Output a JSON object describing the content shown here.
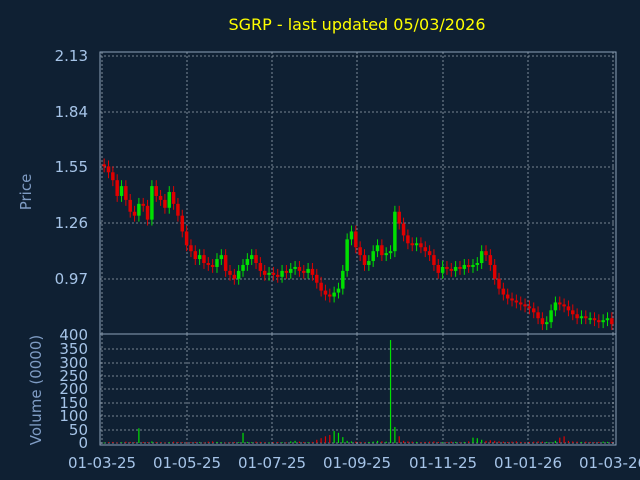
{
  "chart_data": {
    "title": "SGRP - last updated 05/03/2026",
    "colors": {
      "up": "#00e000",
      "down": "#e00000",
      "background": "#0f2033",
      "title": "#ffff00",
      "tick": "#a6c4e8"
    },
    "grid": true,
    "x_ticks": [
      "01-03-25",
      "01-05-25",
      "01-07-25",
      "01-09-25",
      "01-11-25",
      "01-01-26",
      "01-03-26"
    ],
    "price_panel": {
      "type": "candlestick",
      "ylabel": "Price",
      "ylim": [
        0.7,
        2.13
      ],
      "y_ticks": [
        "2.13",
        "1.84",
        "1.55",
        "1.26",
        "0.97"
      ],
      "bottom_label": "400",
      "closes": [
        1.55,
        1.52,
        1.48,
        1.4,
        1.45,
        1.38,
        1.32,
        1.3,
        1.36,
        1.35,
        1.28,
        1.45,
        1.4,
        1.38,
        1.34,
        1.42,
        1.36,
        1.3,
        1.22,
        1.15,
        1.12,
        1.08,
        1.1,
        1.06,
        1.05,
        1.04,
        1.08,
        1.1,
        1.02,
        1.0,
        0.98,
        1.02,
        1.05,
        1.08,
        1.1,
        1.06,
        1.02,
        1.0,
        1.01,
        1.0,
        0.99,
        1.02,
        1.01,
        1.03,
        1.04,
        1.02,
        1.01,
        1.03,
        1.0,
        0.96,
        0.92,
        0.9,
        0.89,
        0.91,
        0.93,
        1.02,
        1.18,
        1.22,
        1.14,
        1.1,
        1.05,
        1.07,
        1.12,
        1.15,
        1.1,
        1.11,
        1.12,
        1.32,
        1.26,
        1.2,
        1.16,
        1.15,
        1.16,
        1.14,
        1.12,
        1.1,
        1.05,
        1.01,
        1.04,
        1.03,
        1.02,
        1.04,
        1.03,
        1.05,
        1.04,
        1.05,
        1.06,
        1.12,
        1.1,
        1.05,
        0.98,
        0.93,
        0.9,
        0.88,
        0.87,
        0.86,
        0.85,
        0.84,
        0.83,
        0.81,
        0.78,
        0.75,
        0.76,
        0.82,
        0.86,
        0.85,
        0.84,
        0.82,
        0.8,
        0.78,
        0.79,
        0.78,
        0.78,
        0.77,
        0.76,
        0.77,
        0.78,
        0.75
      ]
    },
    "volume_panel": {
      "type": "bar",
      "ylabel": "Volume (0000)",
      "ylim": [
        0,
        400
      ],
      "y_ticks": [
        "350",
        "300",
        "250",
        "200",
        "150",
        "100",
        "50",
        "0"
      ],
      "values": [
        2,
        3,
        4,
        2,
        3,
        5,
        4,
        3,
        55,
        4,
        3,
        6,
        4,
        3,
        2,
        3,
        5,
        4,
        3,
        2,
        3,
        4,
        3,
        2,
        5,
        6,
        4,
        3,
        2,
        3,
        4,
        3,
        38,
        4,
        3,
        5,
        4,
        3,
        2,
        3,
        4,
        3,
        2,
        6,
        8,
        5,
        4,
        3,
        4,
        12,
        18,
        25,
        30,
        45,
        38,
        22,
        8,
        6,
        5,
        4,
        3,
        4,
        5,
        8,
        6,
        5,
        385,
        60,
        25,
        8,
        6,
        5,
        4,
        3,
        4,
        5,
        6,
        4,
        3,
        4,
        5,
        4,
        3,
        4,
        6,
        20,
        18,
        12,
        8,
        10,
        8,
        6,
        5,
        4,
        5,
        6,
        4,
        3,
        4,
        5,
        6,
        5,
        4,
        3,
        8,
        20,
        25,
        8,
        6,
        5,
        4,
        5,
        4,
        3,
        4,
        5,
        4,
        3
      ],
      "directions": [
        "up",
        "down",
        "down",
        "down",
        "up",
        "down",
        "down",
        "down",
        "up",
        "down",
        "down",
        "up",
        "down",
        "down",
        "down",
        "up",
        "down",
        "down",
        "down",
        "down",
        "down",
        "down",
        "up",
        "down",
        "down",
        "down",
        "up",
        "up",
        "down",
        "down",
        "down",
        "up",
        "up",
        "up",
        "up",
        "down",
        "down",
        "down",
        "up",
        "down",
        "down",
        "up",
        "down",
        "up",
        "up",
        "down",
        "down",
        "up",
        "down",
        "down",
        "down",
        "down",
        "down",
        "up",
        "up",
        "up",
        "up",
        "up",
        "down",
        "down",
        "down",
        "up",
        "up",
        "up",
        "down",
        "up",
        "up",
        "up",
        "down",
        "down",
        "down",
        "down",
        "up",
        "down",
        "down",
        "down",
        "down",
        "down",
        "up",
        "down",
        "down",
        "up",
        "down",
        "up",
        "down",
        "up",
        "up",
        "up",
        "down",
        "down",
        "down",
        "down",
        "down",
        "down",
        "down",
        "down",
        "down",
        "down",
        "down",
        "down",
        "down",
        "down",
        "up",
        "up",
        "up",
        "down",
        "down",
        "down",
        "down",
        "down",
        "up",
        "down",
        "down",
        "down",
        "down",
        "up",
        "up",
        "down"
      ]
    }
  }
}
